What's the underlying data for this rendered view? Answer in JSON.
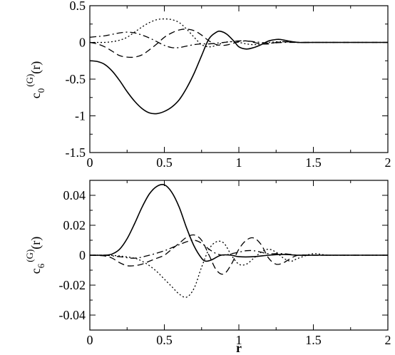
{
  "chart_data": [
    {
      "type": "line",
      "panel": "top",
      "xlabel": "",
      "ylabel": {
        "base": "c",
        "sub": "0",
        "sup": "(G)",
        "arg": "(r)"
      },
      "xlim": [
        0,
        2
      ],
      "ylim": [
        -1.5,
        0.5
      ],
      "xticks": [
        0,
        0.5,
        1,
        1.5,
        2
      ],
      "xtick_labels": [
        "0",
        "0.5",
        "1",
        "1.5",
        "2"
      ],
      "yticks": [
        -1.5,
        -1,
        -0.5,
        0,
        0.5
      ],
      "ytick_labels": [
        "-1.5",
        "-1",
        "-0.5",
        "0",
        "0.5"
      ],
      "grid": false,
      "series": [
        {
          "style": "solid",
          "color": "#000000",
          "x": [
            0,
            0.05,
            0.1,
            0.15,
            0.2,
            0.25,
            0.3,
            0.35,
            0.4,
            0.45,
            0.5,
            0.55,
            0.6,
            0.65,
            0.7,
            0.75,
            0.8,
            0.85,
            0.88,
            0.92,
            0.97,
            1.0,
            1.05,
            1.1,
            1.15,
            1.2,
            1.25,
            1.28,
            1.33,
            1.4,
            1.5,
            1.6,
            1.8,
            2.0
          ],
          "y": [
            -0.25,
            -0.26,
            -0.3,
            -0.39,
            -0.52,
            -0.67,
            -0.8,
            -0.9,
            -0.96,
            -0.97,
            -0.94,
            -0.88,
            -0.78,
            -0.62,
            -0.42,
            -0.18,
            0.05,
            0.14,
            0.15,
            0.11,
            0.01,
            -0.06,
            -0.09,
            -0.07,
            -0.03,
            0.02,
            0.04,
            0.04,
            0.02,
            0.0,
            0.0,
            0.0,
            0.0,
            0.0
          ]
        },
        {
          "style": "dashed",
          "color": "#000000",
          "x": [
            0,
            0.05,
            0.1,
            0.15,
            0.2,
            0.25,
            0.3,
            0.35,
            0.4,
            0.45,
            0.5,
            0.55,
            0.6,
            0.65,
            0.7,
            0.75,
            0.8,
            0.85,
            0.9,
            0.95,
            1.0,
            1.05,
            1.1,
            1.15,
            1.2,
            1.25,
            1.3,
            1.4,
            1.5,
            1.6,
            1.8,
            2.0
          ],
          "y": [
            0.0,
            -0.02,
            -0.06,
            -0.12,
            -0.18,
            -0.2,
            -0.2,
            -0.17,
            -0.1,
            -0.02,
            0.07,
            0.13,
            0.17,
            0.18,
            0.16,
            0.1,
            0.02,
            -0.03,
            -0.04,
            -0.02,
            0.01,
            0.02,
            0.0,
            -0.02,
            -0.02,
            0.0,
            0.01,
            0.0,
            0.0,
            0.0,
            0.0,
            0.0
          ]
        },
        {
          "style": "dotted",
          "color": "#000000",
          "x": [
            0,
            0.05,
            0.1,
            0.15,
            0.2,
            0.25,
            0.3,
            0.35,
            0.4,
            0.45,
            0.5,
            0.55,
            0.6,
            0.65,
            0.7,
            0.75,
            0.8,
            0.85,
            0.9,
            0.95,
            1.0,
            1.05,
            1.1,
            1.15,
            1.2,
            1.3,
            1.4,
            1.5,
            1.6,
            1.8,
            2.0
          ],
          "y": [
            0.0,
            0.0,
            0.0,
            0.01,
            0.03,
            0.07,
            0.14,
            0.21,
            0.27,
            0.31,
            0.32,
            0.31,
            0.27,
            0.18,
            0.07,
            -0.03,
            -0.06,
            -0.04,
            0.0,
            0.01,
            0.0,
            -0.02,
            -0.03,
            -0.02,
            0.0,
            0.01,
            0.0,
            0.0,
            0.0,
            0.0,
            0.0
          ]
        },
        {
          "style": "dashdot",
          "color": "#000000",
          "x": [
            0,
            0.05,
            0.1,
            0.15,
            0.2,
            0.25,
            0.3,
            0.35,
            0.4,
            0.45,
            0.5,
            0.55,
            0.6,
            0.65,
            0.7,
            0.75,
            0.8,
            0.85,
            0.9,
            0.95,
            1.0,
            1.05,
            1.1,
            1.15,
            1.2,
            1.3,
            1.4,
            1.5,
            1.6,
            1.8,
            2.0
          ],
          "y": [
            0.07,
            0.08,
            0.09,
            0.11,
            0.13,
            0.14,
            0.13,
            0.1,
            0.06,
            0.01,
            -0.04,
            -0.07,
            -0.07,
            -0.05,
            -0.03,
            -0.02,
            -0.02,
            -0.01,
            0.0,
            0.01,
            0.02,
            0.02,
            0.01,
            0.0,
            -0.01,
            0.0,
            0.0,
            0.0,
            0.0,
            0.0,
            0.0
          ]
        }
      ]
    },
    {
      "type": "line",
      "panel": "bottom",
      "xlabel": "r",
      "ylabel": {
        "base": "c",
        "sub": "6",
        "sup": "(G)",
        "arg": "(r)"
      },
      "xlim": [
        0,
        2
      ],
      "ylim": [
        -0.05,
        0.05
      ],
      "xticks": [
        0,
        0.5,
        1,
        1.5,
        2
      ],
      "xtick_labels": [
        "0",
        "0.5",
        "1",
        "1.5",
        "2"
      ],
      "yticks": [
        -0.04,
        -0.02,
        0,
        0.02,
        0.04
      ],
      "ytick_labels": [
        "-0.04",
        "-0.02",
        "0",
        "0.02",
        "0.04"
      ],
      "grid": false,
      "series": [
        {
          "style": "solid",
          "color": "#000000",
          "x": [
            0,
            0.1,
            0.15,
            0.2,
            0.25,
            0.3,
            0.35,
            0.4,
            0.45,
            0.5,
            0.55,
            0.6,
            0.65,
            0.7,
            0.75,
            0.78,
            0.82,
            0.88,
            0.95,
            1.0,
            1.1,
            1.2,
            1.3,
            1.4,
            1.5,
            1.6,
            1.8,
            2.0
          ],
          "y": [
            0.0,
            0.0,
            0.0008,
            0.004,
            0.011,
            0.021,
            0.032,
            0.041,
            0.046,
            0.047,
            0.042,
            0.032,
            0.018,
            0.006,
            -0.002,
            -0.004,
            -0.003,
            0.0,
            0.0,
            -0.001,
            -0.001,
            0.0,
            0.0005,
            0.0,
            0.0,
            0.0,
            0.0,
            0.0
          ]
        },
        {
          "style": "dashed",
          "color": "#000000",
          "x": [
            0,
            0.1,
            0.15,
            0.2,
            0.25,
            0.3,
            0.35,
            0.4,
            0.45,
            0.5,
            0.55,
            0.6,
            0.65,
            0.7,
            0.75,
            0.8,
            0.85,
            0.9,
            0.95,
            1.0,
            1.05,
            1.1,
            1.15,
            1.2,
            1.25,
            1.3,
            1.35,
            1.4,
            1.5,
            1.6,
            1.8,
            2.0
          ],
          "y": [
            0.0,
            -0.0005,
            -0.002,
            -0.005,
            -0.007,
            -0.007,
            -0.006,
            -0.004,
            -0.002,
            0.0,
            0.004,
            0.008,
            0.012,
            0.0135,
            0.01,
            0.0,
            -0.01,
            -0.0125,
            -0.006,
            0.004,
            0.01,
            0.0115,
            0.007,
            -0.002,
            -0.006,
            -0.005,
            -0.002,
            0.0,
            0.0,
            0.0,
            0.0,
            0.0
          ]
        },
        {
          "style": "dotted",
          "color": "#000000",
          "x": [
            0,
            0.1,
            0.2,
            0.3,
            0.35,
            0.4,
            0.45,
            0.5,
            0.55,
            0.6,
            0.65,
            0.7,
            0.75,
            0.8,
            0.85,
            0.9,
            0.95,
            1.0,
            1.05,
            1.1,
            1.15,
            1.2,
            1.25,
            1.3,
            1.35,
            1.4,
            1.5,
            1.6,
            1.8,
            2.0
          ],
          "y": [
            0.0,
            0.0,
            -0.0005,
            -0.002,
            -0.004,
            -0.007,
            -0.011,
            -0.016,
            -0.021,
            -0.026,
            -0.028,
            -0.022,
            -0.008,
            0.004,
            0.009,
            0.008,
            0.0,
            -0.006,
            -0.006,
            -0.002,
            0.002,
            0.004,
            0.002,
            -0.002,
            -0.004,
            -0.002,
            0.001,
            0.0,
            0.0,
            0.0
          ]
        },
        {
          "style": "dashdot",
          "color": "#000000",
          "x": [
            0,
            0.1,
            0.2,
            0.3,
            0.4,
            0.5,
            0.55,
            0.6,
            0.65,
            0.7,
            0.75,
            0.8,
            0.85,
            0.9,
            0.95,
            1.0,
            1.05,
            1.1,
            1.15,
            1.2,
            1.3,
            1.4,
            1.5,
            1.6,
            1.8,
            2.0
          ],
          "y": [
            0.0,
            0.0,
            -0.001,
            -0.002,
            0.0,
            0.003,
            0.005,
            0.007,
            0.009,
            0.01,
            0.008,
            0.004,
            0.001,
            0.0,
            0.001,
            0.002,
            0.003,
            0.003,
            0.002,
            0.001,
            0.001,
            0.0,
            0.0,
            0.0,
            0.0,
            0.0
          ]
        }
      ]
    }
  ]
}
